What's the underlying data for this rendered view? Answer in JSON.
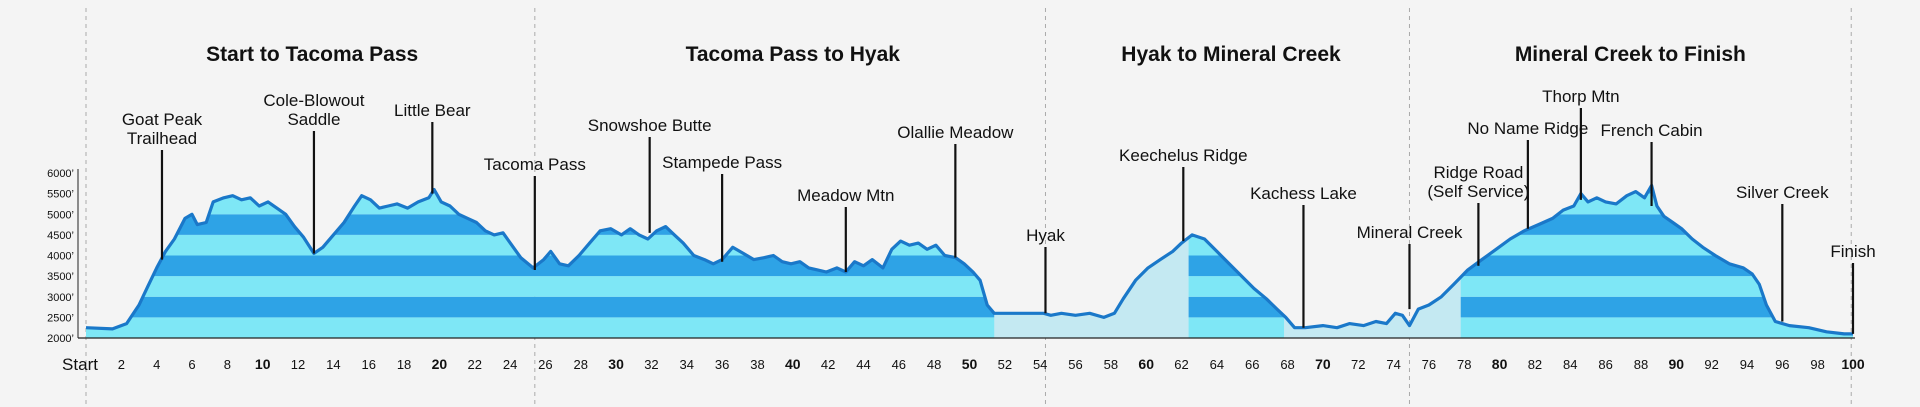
{
  "chart_data": {
    "type": "area",
    "title": "",
    "xlabel": "",
    "ylabel": "",
    "xlim": [
      0,
      100
    ],
    "ylim": [
      2000,
      6000
    ],
    "grid": false,
    "colors": {
      "line": "#1a78c9",
      "band_dark": "#2ea3e6",
      "band_light": "#7ee7f6",
      "flat": "#c4e9f2",
      "divider": "#aaaaaa",
      "marker": "#111111",
      "axis": "#222222"
    },
    "section_titles": [
      {
        "text": "Start to Tacoma Pass",
        "center": 12.8
      },
      {
        "text": "Tacoma Pass to Hyak",
        "center": 40
      },
      {
        "text": "Hyak to Mineral Creek",
        "center": 64.8
      },
      {
        "text": "Mineral Creek to Finish",
        "center": 87.4
      }
    ],
    "section_dividers": [
      0,
      25.4,
      54.3,
      74.9,
      99.9
    ],
    "bands": [
      {
        "y0": 2000,
        "y1": 2500,
        "tone": "light"
      },
      {
        "y0": 2500,
        "y1": 3000,
        "tone": "dark"
      },
      {
        "y0": 3000,
        "y1": 3500,
        "tone": "light"
      },
      {
        "y0": 3500,
        "y1": 4000,
        "tone": "dark"
      },
      {
        "y0": 4000,
        "y1": 4500,
        "tone": "light"
      },
      {
        "y0": 4500,
        "y1": 5000,
        "tone": "dark"
      },
      {
        "y0": 5000,
        "y1": 5500,
        "tone": "light"
      },
      {
        "y0": 5500,
        "y1": 6000,
        "tone": "dark"
      }
    ],
    "flat_ranges": [
      [
        51.4,
        62.4
      ],
      [
        67.8,
        77.8
      ]
    ],
    "y_ticks": [
      {
        "value": 6000,
        "label": "6000’"
      },
      {
        "value": 5500,
        "label": "5500’"
      },
      {
        "value": 5000,
        "label": "5000’"
      },
      {
        "value": 4500,
        "label": "4500’"
      },
      {
        "value": 4000,
        "label": "4000’"
      },
      {
        "value": 3500,
        "label": "3500’"
      },
      {
        "value": 3000,
        "label": "3000’"
      },
      {
        "value": 2500,
        "label": "2500’"
      },
      {
        "value": 2000,
        "label": "2000’"
      }
    ],
    "x_start_label": "Start",
    "x_ticks": [
      {
        "value": 2,
        "label": "2"
      },
      {
        "value": 4,
        "label": "4"
      },
      {
        "value": 6,
        "label": "6"
      },
      {
        "value": 8,
        "label": "8"
      },
      {
        "value": 10,
        "label": "10",
        "bold": true
      },
      {
        "value": 12,
        "label": "12"
      },
      {
        "value": 14,
        "label": "14"
      },
      {
        "value": 16,
        "label": "16"
      },
      {
        "value": 18,
        "label": "18"
      },
      {
        "value": 20,
        "label": "20",
        "bold": true
      },
      {
        "value": 22,
        "label": "22"
      },
      {
        "value": 24,
        "label": "24"
      },
      {
        "value": 26,
        "label": "26"
      },
      {
        "value": 28,
        "label": "28"
      },
      {
        "value": 30,
        "label": "30",
        "bold": true
      },
      {
        "value": 32,
        "label": "32"
      },
      {
        "value": 34,
        "label": "34"
      },
      {
        "value": 36,
        "label": "36"
      },
      {
        "value": 38,
        "label": "38"
      },
      {
        "value": 40,
        "label": "40",
        "bold": true
      },
      {
        "value": 42,
        "label": "42"
      },
      {
        "value": 44,
        "label": "44"
      },
      {
        "value": 46,
        "label": "46"
      },
      {
        "value": 48,
        "label": "48"
      },
      {
        "value": 50,
        "label": "50",
        "bold": true
      },
      {
        "value": 52,
        "label": "52"
      },
      {
        "value": 54,
        "label": "54"
      },
      {
        "value": 56,
        "label": "56"
      },
      {
        "value": 58,
        "label": "58"
      },
      {
        "value": 60,
        "label": "60",
        "bold": true
      },
      {
        "value": 62,
        "label": "62"
      },
      {
        "value": 64,
        "label": "64"
      },
      {
        "value": 66,
        "label": "66"
      },
      {
        "value": 68,
        "label": "68"
      },
      {
        "value": 70,
        "label": "70",
        "bold": true
      },
      {
        "value": 72,
        "label": "72"
      },
      {
        "value": 74,
        "label": "74"
      },
      {
        "value": 76,
        "label": "76"
      },
      {
        "value": 78,
        "label": "78"
      },
      {
        "value": 80,
        "label": "80",
        "bold": true
      },
      {
        "value": 82,
        "label": "82"
      },
      {
        "value": 84,
        "label": "84"
      },
      {
        "value": 86,
        "label": "86"
      },
      {
        "value": 88,
        "label": "88"
      },
      {
        "value": 90,
        "label": "90",
        "bold": true
      },
      {
        "value": 92,
        "label": "92"
      },
      {
        "value": 94,
        "label": "94"
      },
      {
        "value": 96,
        "label": "96"
      },
      {
        "value": 98,
        "label": "98"
      },
      {
        "value": 100,
        "label": "100",
        "bold": true
      }
    ],
    "elevation_profile": [
      [
        0,
        2250
      ],
      [
        1.5,
        2220
      ],
      [
        2.3,
        2350
      ],
      [
        3,
        2800
      ],
      [
        3.5,
        3250
      ],
      [
        4,
        3700
      ],
      [
        4.5,
        4100
      ],
      [
        5,
        4400
      ],
      [
        5.6,
        4900
      ],
      [
        6,
        5000
      ],
      [
        6.3,
        4750
      ],
      [
        6.8,
        4800
      ],
      [
        7.2,
        5300
      ],
      [
        7.8,
        5400
      ],
      [
        8.3,
        5450
      ],
      [
        8.8,
        5350
      ],
      [
        9.3,
        5400
      ],
      [
        9.8,
        5200
      ],
      [
        10.3,
        5300
      ],
      [
        10.8,
        5150
      ],
      [
        11.3,
        5000
      ],
      [
        11.8,
        4700
      ],
      [
        12.3,
        4450
      ],
      [
        12.9,
        4050
      ],
      [
        13.4,
        4200
      ],
      [
        14,
        4500
      ],
      [
        14.6,
        4800
      ],
      [
        15.2,
        5200
      ],
      [
        15.6,
        5450
      ],
      [
        16.1,
        5350
      ],
      [
        16.6,
        5150
      ],
      [
        17.1,
        5200
      ],
      [
        17.6,
        5250
      ],
      [
        18.2,
        5150
      ],
      [
        18.8,
        5300
      ],
      [
        19.4,
        5400
      ],
      [
        19.7,
        5600
      ],
      [
        20.1,
        5300
      ],
      [
        20.6,
        5200
      ],
      [
        21.1,
        5000
      ],
      [
        21.6,
        4900
      ],
      [
        22.1,
        4800
      ],
      [
        22.6,
        4600
      ],
      [
        23.1,
        4500
      ],
      [
        23.6,
        4550
      ],
      [
        24.1,
        4250
      ],
      [
        24.6,
        3950
      ],
      [
        25.3,
        3700
      ],
      [
        25.9,
        3900
      ],
      [
        26.3,
        4100
      ],
      [
        26.8,
        3800
      ],
      [
        27.3,
        3750
      ],
      [
        27.9,
        4000
      ],
      [
        28.5,
        4300
      ],
      [
        29.1,
        4600
      ],
      [
        29.7,
        4650
      ],
      [
        30.3,
        4500
      ],
      [
        30.8,
        4650
      ],
      [
        31.3,
        4500
      ],
      [
        31.8,
        4400
      ],
      [
        32.3,
        4600
      ],
      [
        32.8,
        4700
      ],
      [
        33.3,
        4500
      ],
      [
        33.8,
        4300
      ],
      [
        34.4,
        4000
      ],
      [
        35,
        3900
      ],
      [
        35.5,
        3800
      ],
      [
        36,
        3900
      ],
      [
        36.6,
        4200
      ],
      [
        37.2,
        4050
      ],
      [
        37.8,
        3900
      ],
      [
        38.4,
        3950
      ],
      [
        38.9,
        4000
      ],
      [
        39.4,
        3850
      ],
      [
        39.9,
        3800
      ],
      [
        40.4,
        3850
      ],
      [
        40.9,
        3700
      ],
      [
        41.4,
        3650
      ],
      [
        41.9,
        3600
      ],
      [
        42.5,
        3700
      ],
      [
        43,
        3600
      ],
      [
        43.5,
        3850
      ],
      [
        44,
        3750
      ],
      [
        44.5,
        3900
      ],
      [
        45.1,
        3700
      ],
      [
        45.6,
        4150
      ],
      [
        46.1,
        4350
      ],
      [
        46.6,
        4250
      ],
      [
        47.1,
        4300
      ],
      [
        47.6,
        4150
      ],
      [
        48.1,
        4250
      ],
      [
        48.6,
        4000
      ],
      [
        49.2,
        3950
      ],
      [
        49.7,
        3800
      ],
      [
        50.2,
        3600
      ],
      [
        50.6,
        3400
      ],
      [
        51,
        2800
      ],
      [
        51.4,
        2600
      ],
      [
        54.2,
        2600
      ],
      [
        54.6,
        2550
      ],
      [
        55.2,
        2600
      ],
      [
        56,
        2550
      ],
      [
        56.8,
        2600
      ],
      [
        57.6,
        2500
      ],
      [
        58.2,
        2600
      ],
      [
        58.7,
        2950
      ],
      [
        59.4,
        3400
      ],
      [
        60.1,
        3700
      ],
      [
        60.8,
        3900
      ],
      [
        61.5,
        4100
      ],
      [
        62,
        4300
      ],
      [
        62.6,
        4500
      ],
      [
        63.3,
        4400
      ],
      [
        64,
        4100
      ],
      [
        64.7,
        3800
      ],
      [
        65.4,
        3500
      ],
      [
        66.1,
        3200
      ],
      [
        66.8,
        2950
      ],
      [
        67.4,
        2700
      ],
      [
        67.9,
        2500
      ],
      [
        68.4,
        2250
      ],
      [
        69,
        2250
      ],
      [
        70,
        2300
      ],
      [
        70.8,
        2250
      ],
      [
        71.5,
        2350
      ],
      [
        72.3,
        2300
      ],
      [
        73,
        2400
      ],
      [
        73.6,
        2350
      ],
      [
        74.1,
        2600
      ],
      [
        74.5,
        2550
      ],
      [
        74.9,
        2300
      ],
      [
        75.4,
        2700
      ],
      [
        76,
        2800
      ],
      [
        76.7,
        3000
      ],
      [
        77.4,
        3300
      ],
      [
        78.2,
        3650
      ],
      [
        79,
        3900
      ],
      [
        79.8,
        4150
      ],
      [
        80.6,
        4400
      ],
      [
        81.4,
        4600
      ],
      [
        82.2,
        4750
      ],
      [
        83,
        4900
      ],
      [
        83.6,
        5100
      ],
      [
        84.2,
        5200
      ],
      [
        84.6,
        5500
      ],
      [
        85,
        5300
      ],
      [
        85.5,
        5400
      ],
      [
        86,
        5300
      ],
      [
        86.6,
        5250
      ],
      [
        87.2,
        5450
      ],
      [
        87.7,
        5550
      ],
      [
        88.2,
        5400
      ],
      [
        88.6,
        5700
      ],
      [
        88.9,
        5200
      ],
      [
        89.3,
        4950
      ],
      [
        89.8,
        4800
      ],
      [
        90.3,
        4650
      ],
      [
        90.9,
        4400
      ],
      [
        91.5,
        4200
      ],
      [
        92.2,
        4000
      ],
      [
        93,
        3800
      ],
      [
        93.8,
        3700
      ],
      [
        94.3,
        3550
      ],
      [
        94.7,
        3300
      ],
      [
        95.1,
        2800
      ],
      [
        95.6,
        2400
      ],
      [
        96.4,
        2300
      ],
      [
        97.5,
        2250
      ],
      [
        98.5,
        2150
      ],
      [
        99.5,
        2100
      ],
      [
        100,
        2100
      ]
    ],
    "annotations": [
      {
        "lines": [
          "Goat Peak",
          "Trailhead"
        ],
        "x": 4.3,
        "elev": 3900,
        "align": "middle"
      },
      {
        "lines": [
          "Cole-Blowout",
          "Saddle"
        ],
        "x": 12.9,
        "elev": 4050,
        "align": "middle"
      },
      {
        "lines": [
          "Little Bear"
        ],
        "x": 19.6,
        "elev": 5500,
        "align": "middle"
      },
      {
        "lines": [
          "Tacoma Pass"
        ],
        "x": 25.4,
        "elev": 3650,
        "align": "middle"
      },
      {
        "lines": [
          "Snowshoe Butte"
        ],
        "x": 31.9,
        "elev": 4550,
        "align": "middle"
      },
      {
        "lines": [
          "Stampede Pass"
        ],
        "x": 36,
        "elev": 3850,
        "align": "middle"
      },
      {
        "lines": [
          "Meadow Mtn"
        ],
        "x": 43,
        "elev": 3600,
        "align": "middle"
      },
      {
        "lines": [
          "Olallie Meadow"
        ],
        "x": 49.2,
        "elev": 3950,
        "align": "middle"
      },
      {
        "lines": [
          "Hyak"
        ],
        "x": 54.3,
        "elev": 2600,
        "align": "middle"
      },
      {
        "lines": [
          "Keechelus Ridge"
        ],
        "x": 62.1,
        "elev": 4350,
        "align": "middle"
      },
      {
        "lines": [
          "Kachess Lake"
        ],
        "x": 68.9,
        "elev": 2250,
        "align": "middle"
      },
      {
        "lines": [
          "Mineral Creek"
        ],
        "x": 74.9,
        "elev": 2700,
        "align": "middle"
      },
      {
        "lines": [
          "Ridge Road",
          "(Self Service)"
        ],
        "x": 78.8,
        "elev": 3750,
        "align": "middle"
      },
      {
        "lines": [
          "No Name Ridge"
        ],
        "x": 81.6,
        "elev": 4650,
        "align": "middle"
      },
      {
        "lines": [
          "Thorp Mtn"
        ],
        "x": 84.6,
        "elev": 5350,
        "align": "middle"
      },
      {
        "lines": [
          "French Cabin"
        ],
        "x": 88.6,
        "elev": 5200,
        "align": "middle"
      },
      {
        "lines": [
          "Silver Creek"
        ],
        "x": 96,
        "elev": 2400,
        "align": "middle"
      },
      {
        "lines": [
          "Finish"
        ],
        "x": 100,
        "elev": 2100,
        "align": "middle"
      }
    ]
  }
}
